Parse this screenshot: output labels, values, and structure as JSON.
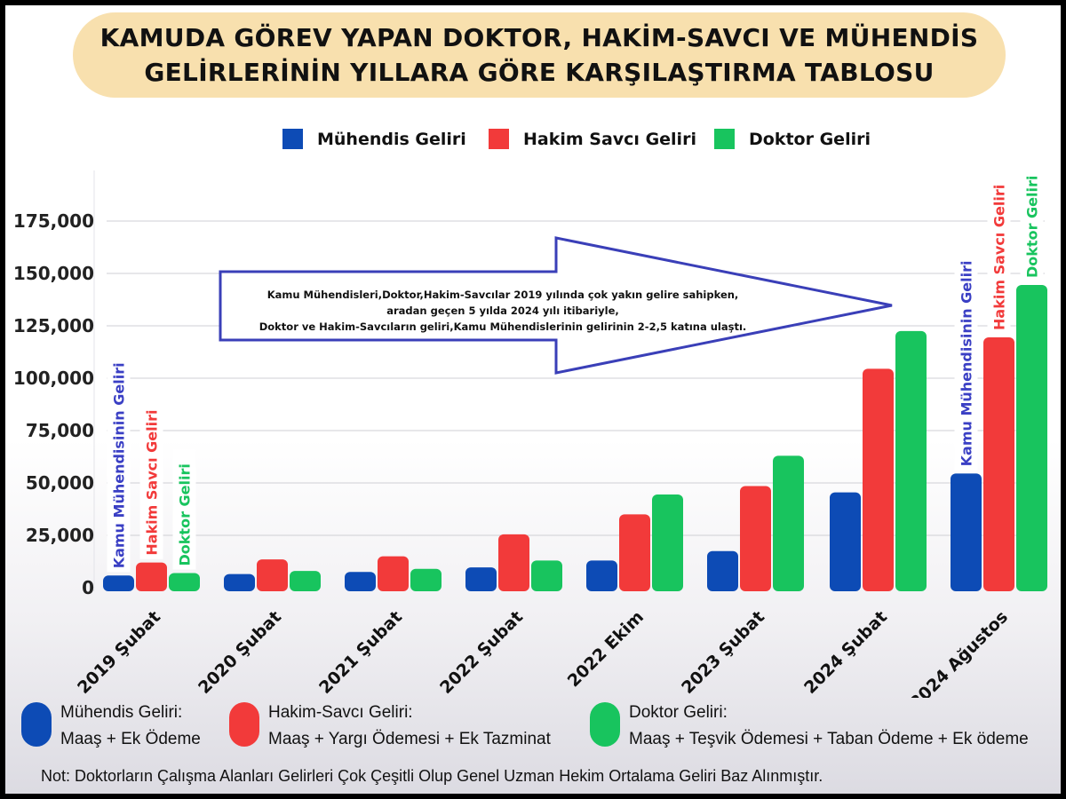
{
  "title": {
    "line1": "KAMUDA GÖREV YAPAN DOKTOR, HAKİM-SAVCI VE MÜHENDİS",
    "line2": "GELİRLERİNİN YILLARA GÖRE KARŞILAŞTIRMA TABLOSU"
  },
  "colors": {
    "engineer": "#0d4bb5",
    "judge": "#f23a3a",
    "doctor": "#18c45e",
    "engineer_label": "#3a3fc4",
    "arrow": "#3a3fb8"
  },
  "legend": [
    {
      "name": "Mühendis Geliri",
      "color": "#0d4bb5"
    },
    {
      "name": "Hakim Savcı Geliri",
      "color": "#f23a3a"
    },
    {
      "name": "Doktor Geliri",
      "color": "#18c45e"
    }
  ],
  "chart_data": {
    "type": "bar",
    "categories": [
      "2019 Şubat",
      "2020 Şubat",
      "2021 Şubat",
      "2022 Şubat",
      "2022 Ekim",
      "2023 Şubat",
      "2024 Şubat",
      "2024 Ağustos"
    ],
    "series": [
      {
        "name": "Mühendis Geliri",
        "values": [
          5800,
          6500,
          7500,
          9700,
          13000,
          17500,
          45500,
          54500
        ]
      },
      {
        "name": "Hakim Savcı Geliri",
        "values": [
          12000,
          13500,
          15000,
          25500,
          35000,
          48500,
          104500,
          119500
        ]
      },
      {
        "name": "Doktor Geliri",
        "values": [
          7000,
          8000,
          9000,
          13000,
          44500,
          63000,
          122500,
          144500
        ]
      }
    ],
    "yticks": [
      "0",
      "25,000",
      "50,000",
      "75,000",
      "100,000",
      "125,000",
      "150,000",
      "175,000"
    ],
    "ytick_values": [
      0,
      25000,
      50000,
      75000,
      100000,
      125000,
      150000,
      175000
    ],
    "ylim": [
      0,
      175000
    ],
    "grid": true,
    "legend_position": "top",
    "bar_labels": {
      "first": [
        "Kamu Mühendisinin Geliri",
        "Hakim Savcı Geliri",
        "Doktor Geliri"
      ],
      "last": [
        "Kamu Mühendisinin Geliri",
        "Hakim Savcı Geliri",
        "Doktor Geliri"
      ]
    },
    "annotation": [
      "Kamu Mühendisleri,Doktor,Hakim-Savcılar 2019 yılında çok yakın gelire sahipken,",
      "aradan geçen 5 yılda 2024 yılı itibariyle,",
      "Doktor ve Hakim-Savcıların geliri,Kamu Mühendislerinin gelirinin 2-2,5 katına ulaştı."
    ]
  },
  "composition": [
    {
      "title": "Mühendis Geliri:",
      "detail": "Maaş  +  Ek Ödeme",
      "color": "#0d4bb5"
    },
    {
      "title": "Hakim-Savcı Geliri:",
      "detail": "Maaş + Yargı Ödemesi + Ek Tazminat",
      "color": "#f23a3a"
    },
    {
      "title": "Doktor Geliri:",
      "detail": "Maaş + Teşvik Ödemesi + Taban Ödeme + Ek ödeme",
      "color": "#18c45e"
    }
  ],
  "note": "Not: Doktorların Çalışma Alanları Gelirleri Çok Çeşitli Olup Genel Uzman Hekim Ortalama Geliri Baz Alınmıştır."
}
